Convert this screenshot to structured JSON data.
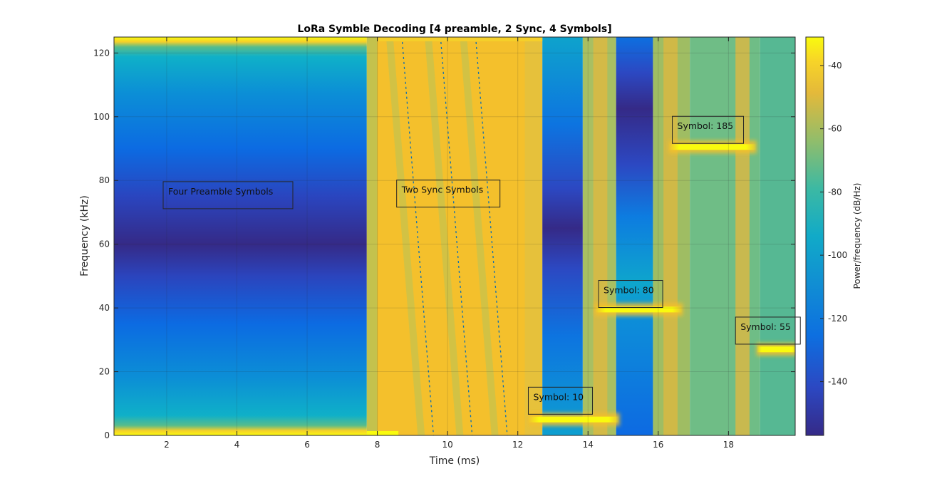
{
  "chart_data": {
    "type": "heatmap",
    "title": "LoRa Symble Decoding [4 preamble, 2 Sync, 4 Symbols]",
    "xlabel": "Time (ms)",
    "ylabel": "Frequency (kHz)",
    "xlim": [
      0.5,
      19.9
    ],
    "ylim": [
      0,
      125
    ],
    "x_ticks": [
      2,
      4,
      6,
      8,
      10,
      12,
      14,
      16,
      18
    ],
    "y_ticks": [
      0,
      20,
      40,
      60,
      80,
      100,
      120
    ],
    "grid": true,
    "colorbar": {
      "label": "Power/frequency (dB/Hz)",
      "min": -157,
      "max": -31,
      "ticks": [
        -40,
        -60,
        -80,
        -100,
        -120,
        -140
      ],
      "colormap": "parula"
    },
    "annotations": [
      {
        "text": "Four Preamble Symbols",
        "x": 1.9,
        "y": 76.5
      },
      {
        "text": "Two Sync Symbols",
        "x": 8.55,
        "y": 77
      },
      {
        "text": "Symbol: 10",
        "x": 12.3,
        "y": 12
      },
      {
        "text": "Symbol: 80",
        "x": 14.3,
        "y": 45.5
      },
      {
        "text": "Symbol: 185",
        "x": 16.4,
        "y": 97
      },
      {
        "text": "Symbol: 55",
        "x": 18.2,
        "y": 34
      }
    ],
    "segments": [
      {
        "name": "Four Preamble Symbols",
        "t_start": 0.5,
        "t_end": 7.7
      },
      {
        "name": "Two Sync Symbols",
        "t_start": 7.7,
        "t_end": 12.7
      },
      {
        "name": "Symbol: 10",
        "t_start": 12.7,
        "t_end": 14.8,
        "freq_khz": 5
      },
      {
        "name": "Symbol: 80",
        "t_start": 14.8,
        "t_end": 16.9,
        "freq_khz": 39.5
      },
      {
        "name": "Symbol: 185",
        "t_start": 16.9,
        "t_end": 18.9,
        "freq_khz": 90.5
      },
      {
        "name": "Symbol: 55",
        "t_start": 18.9,
        "t_end": 19.9,
        "freq_khz": 27
      }
    ],
    "colors": {
      "background_blue": "#0d6fe0",
      "dark_band": "#352a87",
      "teal": "#11aac8",
      "orange": "#f4c02c",
      "yellow": "#f9fb0e",
      "green": "#56b893"
    }
  }
}
